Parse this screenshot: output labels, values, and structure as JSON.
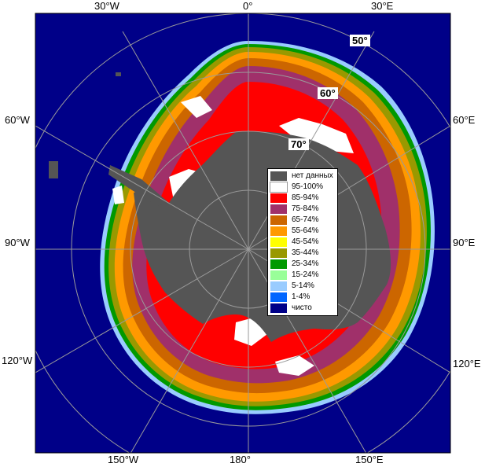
{
  "axes": {
    "top": [
      "30°W",
      "0°",
      "30°E"
    ],
    "bottom": [
      "150°W",
      "180°",
      "150°E"
    ],
    "left": [
      "60°W",
      "90°W",
      "120°W"
    ],
    "right": [
      "60°E",
      "90°E",
      "120°E"
    ]
  },
  "latitude_labels": [
    "50°",
    "60°",
    "70°"
  ],
  "legend": [
    {
      "label": "нет данных",
      "color": "#555555"
    },
    {
      "label": "95-100%",
      "color": "#ffffff"
    },
    {
      "label": "85-94%",
      "color": "#ff0000"
    },
    {
      "label": "75-84%",
      "color": "#a0306a"
    },
    {
      "label": "65-74%",
      "color": "#cc6600"
    },
    {
      "label": "55-64%",
      "color": "#ff9900"
    },
    {
      "label": "45-54%",
      "color": "#ffff00"
    },
    {
      "label": "35-44%",
      "color": "#999900"
    },
    {
      "label": "25-34%",
      "color": "#009900"
    },
    {
      "label": "15-24%",
      "color": "#99ff99"
    },
    {
      "label": "5-14%",
      "color": "#99ccff"
    },
    {
      "label": "1-4%",
      "color": "#0066ff"
    },
    {
      "label": "чисто",
      "color": "#000088"
    }
  ]
}
